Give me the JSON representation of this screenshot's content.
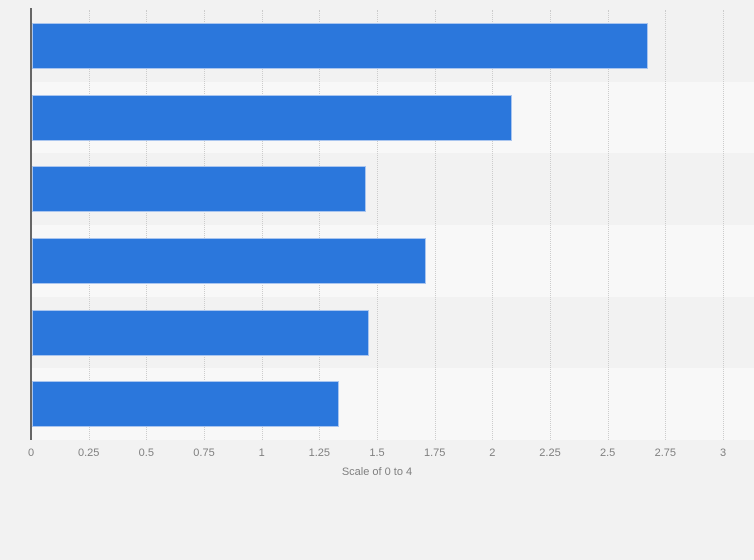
{
  "page": {
    "background": "#f2f2f2"
  },
  "chart_data": {
    "type": "bar",
    "orientation": "horizontal",
    "categories": [
      "",
      "",
      "",
      "",
      "",
      ""
    ],
    "values": [
      2.67,
      2.08,
      1.45,
      1.71,
      1.46,
      1.33
    ],
    "xlabel": "Scale of 0 to 4",
    "xlim": [
      0,
      3
    ],
    "xtick_labels": [
      "0",
      "0.25",
      "0.5",
      "0.75",
      "1",
      "1.25",
      "1.5",
      "1.75",
      "2",
      "2.25",
      "2.5",
      "2.75",
      "3"
    ],
    "xtick_values": [
      0,
      0.25,
      0.5,
      0.75,
      1,
      1.25,
      1.5,
      1.75,
      2,
      2.25,
      2.5,
      2.75,
      3
    ],
    "grid": true,
    "gridline_style": "dotted",
    "legend": false,
    "colors": {
      "bar": "#2b77dc",
      "bar_border": "#a9c5ef",
      "band_alt": "#f8f8f8",
      "band_base": "#f2f2f2",
      "grid": "#cccccc",
      "axis_line": "#666666",
      "tick_text": "#808080"
    }
  }
}
